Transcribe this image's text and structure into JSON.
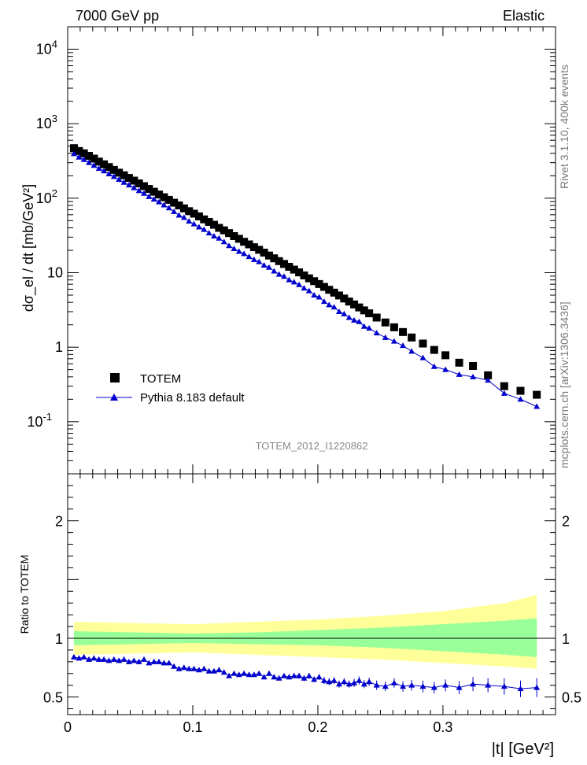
{
  "header": {
    "left": "7000 GeV pp",
    "right": "Elastic",
    "analysis": "TOTEM_2012_I1220862",
    "side_top": "Rivet 3.1.10,  400k events",
    "side_bottom": "mcplots.cern.ch [arXiv:1306.3436]"
  },
  "axes": {
    "top_ylabel": "dσ_el / dt [mb/GeV²]",
    "bottom_ylabel": "Ratio to TOTEM",
    "xlabel": "|t| [GeV²]",
    "x_ticks": [
      "0",
      "0.1",
      "0.2",
      "0.3"
    ],
    "top_y_ticks": [
      "10^-1",
      "1",
      "10",
      "10^2",
      "10^3",
      "10^4"
    ],
    "ratio_y_ticks": [
      "0.5",
      "1",
      "2"
    ]
  },
  "legend": {
    "totem": "TOTEM",
    "pythia": "Pythia 8.183 default"
  },
  "colors": {
    "totem": "#000000",
    "pythia": "#0000cc",
    "band_outer": "#ffff99",
    "band_inner": "#99ff99"
  },
  "chart_data": [
    {
      "type": "scatter",
      "log_y": true,
      "xlim": [
        0,
        0.39
      ],
      "ylim": [
        0.02,
        20000
      ],
      "x": [
        0.005,
        0.009,
        0.013,
        0.017,
        0.021,
        0.025,
        0.029,
        0.033,
        0.037,
        0.041,
        0.045,
        0.049,
        0.053,
        0.057,
        0.061,
        0.065,
        0.069,
        0.073,
        0.077,
        0.081,
        0.085,
        0.089,
        0.093,
        0.097,
        0.101,
        0.105,
        0.109,
        0.113,
        0.117,
        0.121,
        0.125,
        0.129,
        0.133,
        0.137,
        0.141,
        0.145,
        0.149,
        0.153,
        0.157,
        0.161,
        0.165,
        0.169,
        0.173,
        0.177,
        0.181,
        0.185,
        0.189,
        0.193,
        0.197,
        0.201,
        0.205,
        0.209,
        0.213,
        0.217,
        0.221,
        0.225,
        0.229,
        0.233,
        0.237,
        0.241,
        0.245,
        0.249,
        0.253,
        0.257,
        0.261,
        0.265,
        0.269,
        0.273,
        0.277,
        0.281,
        0.285,
        0.289,
        0.293,
        0.297,
        0.301,
        0.305,
        0.309,
        0.313,
        0.317,
        0.321,
        0.325,
        0.329,
        0.333,
        0.337,
        0.341,
        0.345,
        0.349,
        0.353,
        0.357,
        0.361,
        0.365,
        0.369,
        0.373
      ],
      "series": [
        {
          "name": "TOTEM",
          "marker": "square",
          "x": [
            0.005,
            0.009,
            0.013,
            0.017,
            0.021,
            0.025,
            0.029,
            0.033,
            0.037,
            0.041,
            0.045,
            0.049,
            0.053,
            0.057,
            0.061,
            0.065,
            0.069,
            0.073,
            0.077,
            0.081,
            0.085,
            0.089,
            0.093,
            0.097,
            0.101,
            0.105,
            0.109,
            0.113,
            0.117,
            0.121,
            0.125,
            0.129,
            0.133,
            0.137,
            0.141,
            0.145,
            0.149,
            0.153,
            0.157,
            0.161,
            0.165,
            0.169,
            0.173,
            0.177,
            0.181,
            0.185,
            0.189,
            0.193,
            0.197,
            0.201,
            0.205,
            0.209,
            0.213,
            0.217,
            0.221,
            0.225,
            0.229,
            0.233,
            0.237,
            0.241,
            0.247,
            0.254,
            0.261,
            0.268,
            0.275,
            0.284,
            0.293,
            0.302,
            0.313,
            0.324,
            0.336,
            0.349,
            0.362,
            0.375
          ],
          "values": [
            470,
            430,
            400,
            370,
            340,
            310,
            285,
            262,
            240,
            220,
            203,
            187,
            172,
            158,
            145,
            133,
            122,
            112,
            103,
            95,
            87,
            80,
            73,
            67,
            62,
            57,
            52,
            48,
            44,
            40,
            37,
            34,
            31,
            28.5,
            26,
            24,
            22,
            20.3,
            18.6,
            17,
            15.6,
            14.3,
            13.1,
            12,
            11,
            10.1,
            9.2,
            8.4,
            7.7,
            7.05,
            6.45,
            5.9,
            5.4,
            4.95,
            4.5,
            4.1,
            3.75,
            3.42,
            3.12,
            2.85,
            2.5,
            2.15,
            1.85,
            1.6,
            1.35,
            1.12,
            0.92,
            0.78,
            0.62,
            0.56,
            0.42,
            0.3,
            0.26,
            0.23
          ]
        },
        {
          "name": "Pythia 8.183 default",
          "marker": "triangle",
          "x": [
            0.005,
            0.009,
            0.013,
            0.017,
            0.021,
            0.025,
            0.029,
            0.033,
            0.037,
            0.041,
            0.045,
            0.049,
            0.053,
            0.057,
            0.061,
            0.065,
            0.069,
            0.073,
            0.077,
            0.081,
            0.085,
            0.089,
            0.093,
            0.097,
            0.101,
            0.105,
            0.109,
            0.113,
            0.117,
            0.121,
            0.125,
            0.129,
            0.133,
            0.137,
            0.141,
            0.145,
            0.149,
            0.153,
            0.157,
            0.161,
            0.165,
            0.169,
            0.173,
            0.177,
            0.181,
            0.185,
            0.189,
            0.193,
            0.197,
            0.201,
            0.205,
            0.209,
            0.213,
            0.217,
            0.221,
            0.225,
            0.229,
            0.233,
            0.237,
            0.241,
            0.247,
            0.254,
            0.261,
            0.268,
            0.275,
            0.284,
            0.293,
            0.302,
            0.313,
            0.324,
            0.336,
            0.349,
            0.362,
            0.375
          ],
          "values": [
            395,
            355,
            330,
            300,
            275,
            250,
            232,
            212,
            195,
            178,
            163,
            150,
            138,
            126,
            116,
            105,
            97,
            89,
            81,
            74,
            66,
            59,
            55,
            49,
            45,
            41,
            38,
            34,
            31,
            29,
            26,
            23,
            21,
            19.3,
            18,
            16.4,
            15,
            14,
            12.6,
            11.8,
            10.5,
            9.5,
            8.9,
            8.0,
            7.5,
            6.9,
            6.2,
            5.7,
            5.0,
            4.7,
            4.1,
            3.7,
            3.45,
            3.0,
            2.8,
            2.5,
            2.3,
            2.2,
            1.9,
            1.8,
            1.55,
            1.35,
            1.2,
            1.05,
            0.88,
            0.72,
            0.55,
            0.5,
            0.43,
            0.4,
            0.36,
            0.24,
            0.2,
            0.16
          ]
        }
      ],
      "title": "",
      "ylabel": "dσ_el / dt [mb/GeV²]"
    },
    {
      "type": "line",
      "xlim": [
        0,
        0.39
      ],
      "ylim": [
        0.35,
        2.4
      ],
      "series": [
        {
          "name": "Pythia 8.183 default",
          "x": [
            0.005,
            0.009,
            0.013,
            0.017,
            0.021,
            0.025,
            0.029,
            0.033,
            0.037,
            0.041,
            0.045,
            0.049,
            0.053,
            0.057,
            0.061,
            0.065,
            0.069,
            0.073,
            0.077,
            0.081,
            0.085,
            0.089,
            0.093,
            0.097,
            0.101,
            0.105,
            0.109,
            0.113,
            0.117,
            0.121,
            0.125,
            0.129,
            0.133,
            0.137,
            0.141,
            0.145,
            0.149,
            0.153,
            0.157,
            0.161,
            0.165,
            0.169,
            0.173,
            0.177,
            0.181,
            0.185,
            0.189,
            0.193,
            0.197,
            0.201,
            0.205,
            0.209,
            0.213,
            0.217,
            0.221,
            0.225,
            0.229,
            0.233,
            0.237,
            0.241,
            0.247,
            0.254,
            0.261,
            0.268,
            0.275,
            0.284,
            0.293,
            0.302,
            0.313,
            0.324,
            0.336,
            0.349,
            0.362,
            0.375
          ],
          "values": [
            0.84,
            0.83,
            0.84,
            0.82,
            0.83,
            0.82,
            0.82,
            0.81,
            0.82,
            0.81,
            0.82,
            0.8,
            0.81,
            0.8,
            0.82,
            0.79,
            0.8,
            0.8,
            0.79,
            0.79,
            0.76,
            0.74,
            0.75,
            0.74,
            0.74,
            0.73,
            0.74,
            0.72,
            0.72,
            0.73,
            0.71,
            0.68,
            0.7,
            0.69,
            0.7,
            0.69,
            0.69,
            0.7,
            0.67,
            0.7,
            0.67,
            0.66,
            0.68,
            0.67,
            0.68,
            0.68,
            0.66,
            0.68,
            0.65,
            0.67,
            0.64,
            0.63,
            0.64,
            0.61,
            0.63,
            0.61,
            0.62,
            0.64,
            0.61,
            0.63,
            0.6,
            0.59,
            0.62,
            0.59,
            0.6,
            0.59,
            0.58,
            0.6,
            0.58,
            0.61,
            0.6,
            0.59,
            0.57,
            0.58
          ],
          "errors": [
            0.01,
            0.01,
            0.01,
            0.01,
            0.01,
            0.01,
            0.01,
            0.01,
            0.01,
            0.01,
            0.01,
            0.01,
            0.01,
            0.01,
            0.01,
            0.01,
            0.01,
            0.01,
            0.01,
            0.01,
            0.01,
            0.01,
            0.01,
            0.01,
            0.01,
            0.01,
            0.01,
            0.01,
            0.01,
            0.01,
            0.015,
            0.015,
            0.015,
            0.015,
            0.015,
            0.015,
            0.02,
            0.02,
            0.02,
            0.02,
            0.02,
            0.02,
            0.02,
            0.02,
            0.02,
            0.025,
            0.025,
            0.025,
            0.025,
            0.025,
            0.03,
            0.03,
            0.03,
            0.03,
            0.03,
            0.03,
            0.035,
            0.035,
            0.035,
            0.035,
            0.04,
            0.04,
            0.04,
            0.045,
            0.045,
            0.05,
            0.05,
            0.05,
            0.055,
            0.06,
            0.06,
            0.07,
            0.07,
            0.08
          ]
        }
      ],
      "band_outer": {
        "x": [
          0.005,
          0.1,
          0.15,
          0.2,
          0.25,
          0.3,
          0.35,
          0.375
        ],
        "lo": [
          0.86,
          0.88,
          0.86,
          0.84,
          0.82,
          0.79,
          0.76,
          0.74
        ],
        "hi": [
          1.14,
          1.12,
          1.14,
          1.16,
          1.19,
          1.23,
          1.3,
          1.37
        ]
      },
      "band_inner": {
        "x": [
          0.005,
          0.1,
          0.15,
          0.2,
          0.25,
          0.3,
          0.35,
          0.375
        ],
        "lo": [
          0.94,
          0.96,
          0.95,
          0.94,
          0.92,
          0.89,
          0.86,
          0.84
        ],
        "hi": [
          1.06,
          1.04,
          1.05,
          1.07,
          1.09,
          1.12,
          1.15,
          1.17
        ]
      },
      "reference": 1,
      "ylabel": "Ratio to TOTEM",
      "xlabel": "|t| [GeV²]"
    }
  ]
}
